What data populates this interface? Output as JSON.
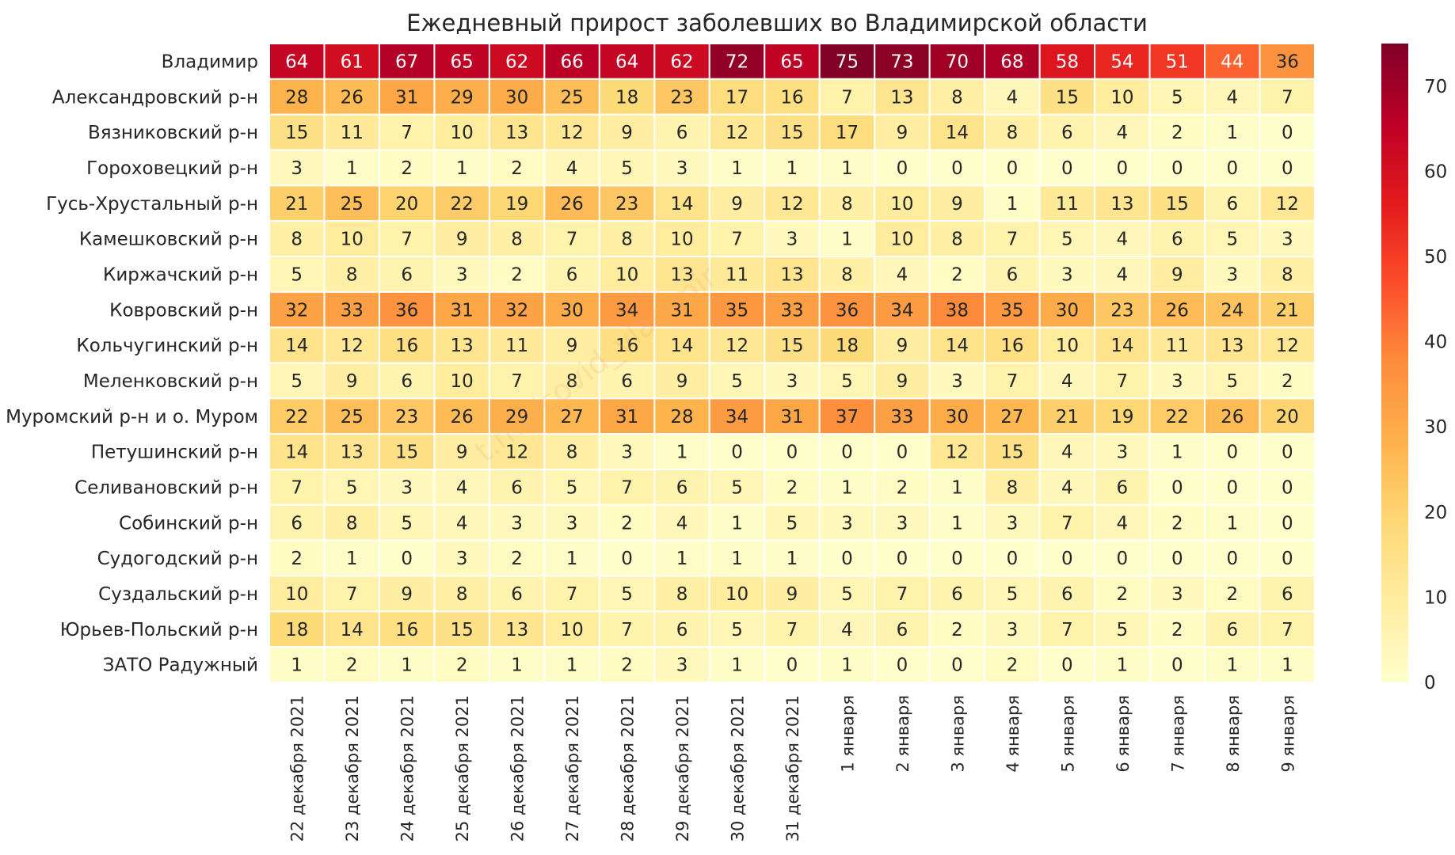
{
  "chart_data": {
    "type": "heatmap",
    "title": "Ежедневный прирост заболевших во Владимирской области",
    "rows": [
      "Владимир",
      "Александровский р-н",
      "Вязниковский р-н",
      "Гороховецкий р-н",
      "Гусь-Хрустальный р-н",
      "Камешковский р-н",
      "Киржачский р-н",
      "Ковровский р-н",
      "Кольчугинский р-н",
      "Меленковский р-н",
      "Муромский р-н и о. Муром",
      "Петушинский р-н",
      "Селивановский р-н",
      "Собинский р-н",
      "Судогодский р-н",
      "Суздальский р-н",
      "Юрьев-Польский р-н",
      "ЗАТО Радужный"
    ],
    "columns": [
      "22 декабря 2021",
      "23 декабря 2021",
      "24 декабря 2021",
      "25 декабря 2021",
      "26 декабря 2021",
      "27 декабря 2021",
      "28 декабря 2021",
      "29 декабря 2021",
      "30 декабря 2021",
      "31 декабря 2021",
      "1 января",
      "2 января",
      "3 января",
      "4 января",
      "5 января",
      "6 января",
      "7 января",
      "8 января",
      "9 января"
    ],
    "values": [
      [
        64,
        61,
        67,
        65,
        62,
        66,
        64,
        62,
        72,
        65,
        75,
        73,
        70,
        68,
        58,
        54,
        51,
        44,
        36
      ],
      [
        28,
        26,
        31,
        29,
        30,
        25,
        18,
        23,
        17,
        16,
        7,
        13,
        8,
        4,
        15,
        10,
        5,
        4,
        7
      ],
      [
        15,
        11,
        7,
        10,
        13,
        12,
        9,
        6,
        12,
        15,
        17,
        9,
        14,
        8,
        6,
        4,
        2,
        1,
        0
      ],
      [
        3,
        1,
        2,
        1,
        2,
        4,
        5,
        3,
        1,
        1,
        1,
        0,
        0,
        0,
        0,
        0,
        0,
        0,
        0
      ],
      [
        21,
        25,
        20,
        22,
        19,
        26,
        23,
        14,
        9,
        12,
        8,
        10,
        9,
        1,
        11,
        13,
        15,
        6,
        12
      ],
      [
        8,
        10,
        7,
        9,
        8,
        7,
        8,
        10,
        7,
        3,
        1,
        10,
        8,
        7,
        5,
        4,
        6,
        5,
        3
      ],
      [
        5,
        8,
        6,
        3,
        2,
        6,
        10,
        13,
        11,
        13,
        8,
        4,
        2,
        6,
        3,
        4,
        9,
        3,
        8
      ],
      [
        32,
        33,
        36,
        31,
        32,
        30,
        34,
        31,
        35,
        33,
        36,
        34,
        38,
        35,
        30,
        23,
        26,
        24,
        21
      ],
      [
        14,
        12,
        16,
        13,
        11,
        9,
        16,
        14,
        12,
        15,
        18,
        9,
        14,
        16,
        10,
        14,
        11,
        13,
        12
      ],
      [
        5,
        9,
        6,
        10,
        7,
        8,
        6,
        9,
        5,
        3,
        5,
        9,
        3,
        7,
        4,
        7,
        3,
        5,
        2
      ],
      [
        22,
        25,
        23,
        26,
        29,
        27,
        31,
        28,
        34,
        31,
        37,
        33,
        30,
        27,
        21,
        19,
        22,
        26,
        20
      ],
      [
        14,
        13,
        15,
        9,
        12,
        8,
        3,
        1,
        0,
        0,
        0,
        0,
        12,
        15,
        4,
        3,
        1,
        0,
        0
      ],
      [
        7,
        5,
        3,
        4,
        6,
        5,
        7,
        6,
        5,
        2,
        1,
        2,
        1,
        8,
        4,
        6,
        0,
        0,
        0
      ],
      [
        6,
        8,
        5,
        4,
        3,
        3,
        2,
        4,
        1,
        5,
        3,
        3,
        1,
        3,
        7,
        4,
        2,
        1,
        0
      ],
      [
        2,
        1,
        0,
        3,
        2,
        1,
        0,
        1,
        1,
        1,
        0,
        0,
        0,
        0,
        0,
        0,
        0,
        0,
        0
      ],
      [
        10,
        7,
        9,
        8,
        6,
        7,
        5,
        8,
        10,
        9,
        5,
        7,
        6,
        5,
        6,
        2,
        3,
        2,
        6
      ],
      [
        18,
        14,
        16,
        15,
        13,
        10,
        7,
        6,
        5,
        7,
        4,
        6,
        2,
        3,
        7,
        5,
        2,
        6,
        7
      ],
      [
        1,
        2,
        1,
        2,
        1,
        1,
        2,
        3,
        1,
        0,
        1,
        0,
        0,
        2,
        0,
        1,
        0,
        1,
        1
      ]
    ],
    "colorbar": {
      "min": 0,
      "max": 75,
      "ticks": [
        0,
        10,
        20,
        30,
        40,
        50,
        60,
        70
      ],
      "colormap": "YlOrRd"
    },
    "colors": {
      "stops": [
        "#ffffcc",
        "#ffeda0",
        "#fed976",
        "#feb24c",
        "#fd8d3c",
        "#fc4e2a",
        "#e31a1c",
        "#bd0026",
        "#800026"
      ],
      "cell_border": "#ffffff",
      "text_dark": "#262626",
      "text_light": "#ffffff"
    },
    "watermark": "t.me/covid_vladimir"
  }
}
